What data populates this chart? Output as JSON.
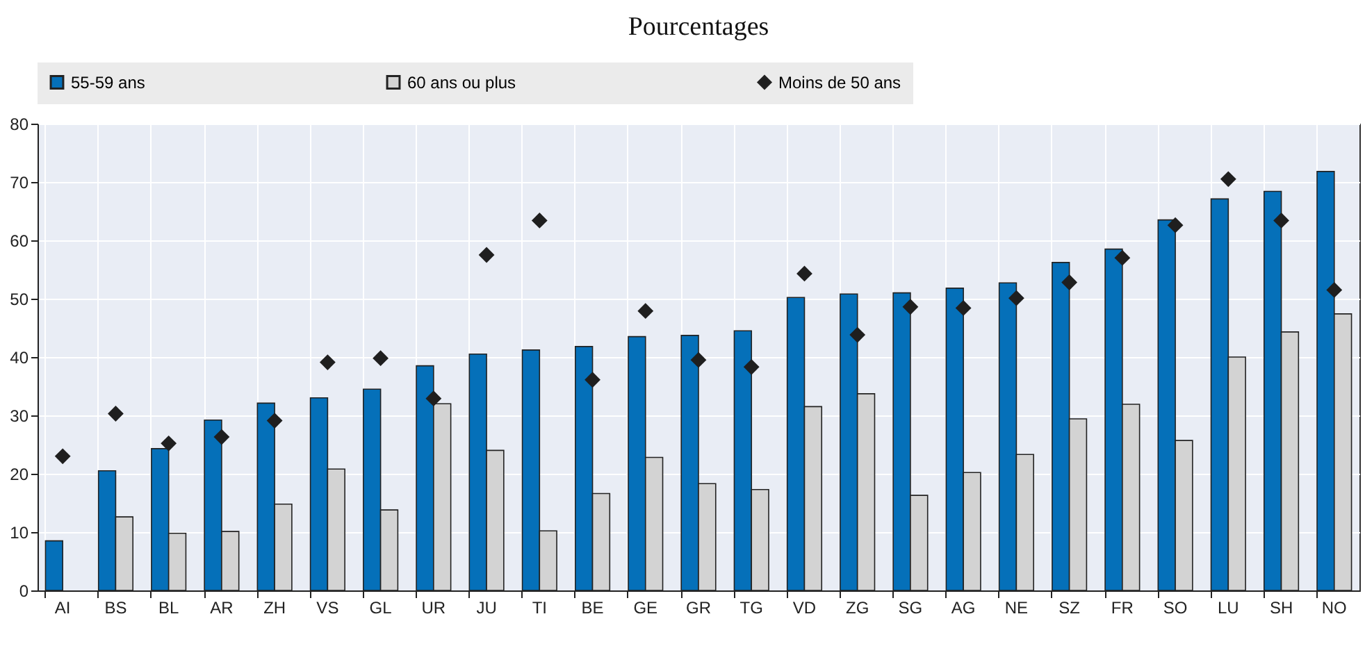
{
  "chart_data": {
    "type": "bar",
    "title": "Pourcentages",
    "categories": [
      "AI",
      "BS",
      "BL",
      "AR",
      "ZH",
      "VS",
      "GL",
      "UR",
      "JU",
      "TI",
      "BE",
      "GE",
      "GR",
      "TG",
      "VD",
      "ZG",
      "SG",
      "AG",
      "NE",
      "SZ",
      "FR",
      "SO",
      "LU",
      "SH",
      "NO"
    ],
    "series": [
      {
        "name": "55-59 ans",
        "color": "#0570b9",
        "values": [
          8.5,
          20.5,
          24.3,
          29.2,
          32.1,
          33,
          34.5,
          38.5,
          40.5,
          41.2,
          41.8,
          43.5,
          43.7,
          44.5,
          50.2,
          50.8,
          51,
          51.8,
          52.7,
          56.2,
          58.5,
          63.5,
          67.1,
          68.4,
          71.8
        ]
      },
      {
        "name": "60 ans ou plus",
        "color": "#d3d3d3",
        "values": [
          null,
          12.6,
          9.8,
          10.1,
          14.8,
          20.8,
          13.8,
          32,
          24,
          10.2,
          16.6,
          22.8,
          18.3,
          17.3,
          31.5,
          33.7,
          16.3,
          20.2,
          23.3,
          29.4,
          31.9,
          25.7,
          40,
          44.3,
          47.4
        ]
      },
      {
        "name": "Moins de 50 ans",
        "type": "scatter",
        "marker": "diamond",
        "color": "#1f1f1f",
        "values": [
          23,
          30.3,
          25.2,
          26.3,
          29.1,
          39.1,
          39.8,
          32.9,
          57.5,
          63.4,
          36.1,
          47.9,
          39.5,
          38.3,
          54.3,
          43.8,
          48.6,
          48.4,
          50.1,
          52.8,
          57,
          62.6,
          70.5,
          63.4,
          51.5
        ]
      }
    ],
    "ylim": [
      0,
      80
    ],
    "yticks": [
      0,
      10,
      20,
      30,
      40,
      50,
      60,
      70,
      80
    ],
    "grid": true,
    "legend": "top"
  }
}
